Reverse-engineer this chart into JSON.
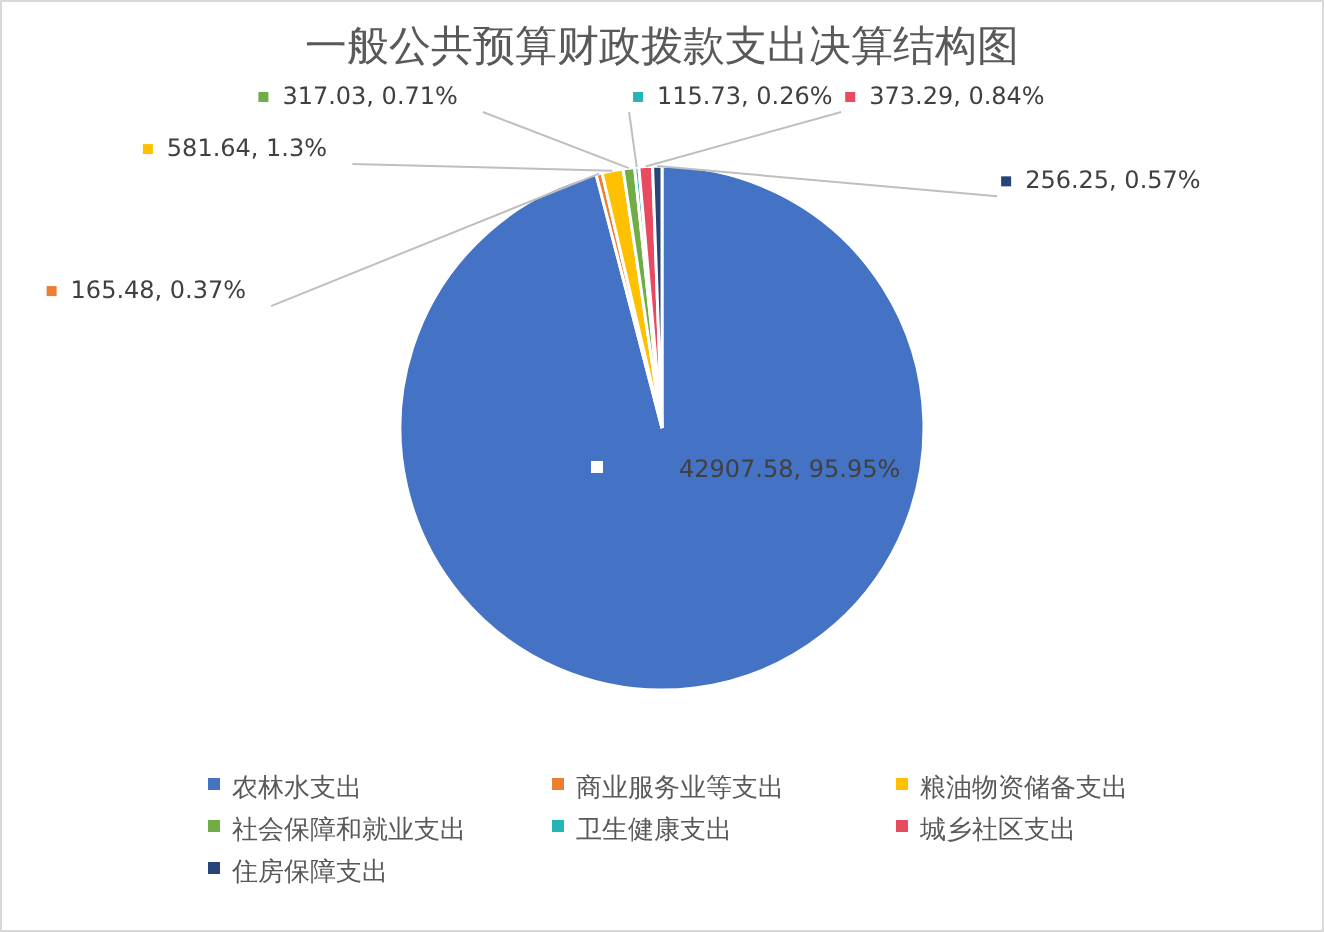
{
  "chart_data": {
    "type": "pie",
    "title": "一般公共预算财政拨款支出决算结构图",
    "categories": [
      "农林水支出",
      "商业服务业等支出",
      "粮油物资储备支出",
      "社会保障和就业支出",
      "卫生健康支出",
      "城乡社区支出",
      "住房保障支出"
    ],
    "values": [
      42907.58,
      165.48,
      581.64,
      317.03,
      115.73,
      373.29,
      256.25
    ],
    "colors": [
      "#4472c4",
      "#ed7d31",
      "#ffc000",
      "#70ad47",
      "#26b5b5",
      "#e84a5f",
      "#264478"
    ],
    "value_labels": [
      "42907.58, 95.95%",
      "165.48, 0.37%",
      "581.64, 1.3%",
      "317.03, 0.71%",
      "115.73, 0.26%",
      "373.29, 0.84%",
      "256.25, 0.57%"
    ],
    "legend": "bottom"
  }
}
